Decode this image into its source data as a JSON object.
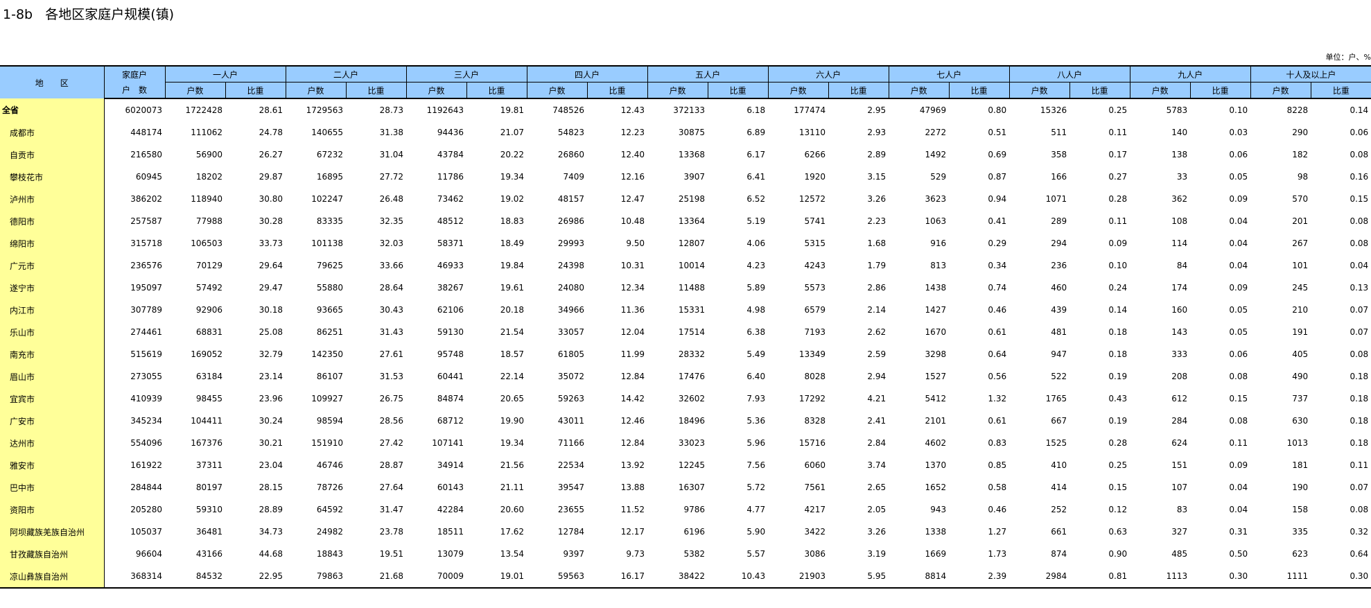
{
  "title": "1-8b   各地区家庭户规模(镇)",
  "unit": "单位：户、%",
  "header": {
    "region": "地　　区",
    "total": "家庭户",
    "total_sub": "户　数",
    "groups": [
      "一人户",
      "二人户",
      "三人户",
      "四人户",
      "五人户",
      "六人户",
      "七人户",
      "八人户",
      "九人户",
      "十人及以上户"
    ],
    "sub_count": "户数",
    "sub_ratio": "比重"
  },
  "rows": [
    {
      "region": "全省",
      "total": "6020073",
      "cells": [
        "1722428",
        "28.61",
        "1729563",
        "28.73",
        "1192643",
        "19.81",
        "748526",
        "12.43",
        "372133",
        "6.18",
        "177474",
        "2.95",
        "47969",
        "0.80",
        "15326",
        "0.25",
        "5783",
        "0.10",
        "8228",
        "0.14"
      ]
    },
    {
      "region": "成都市",
      "total": "448174",
      "cells": [
        "111062",
        "24.78",
        "140655",
        "31.38",
        "94436",
        "21.07",
        "54823",
        "12.23",
        "30875",
        "6.89",
        "13110",
        "2.93",
        "2272",
        "0.51",
        "511",
        "0.11",
        "140",
        "0.03",
        "290",
        "0.06"
      ]
    },
    {
      "region": "自贡市",
      "total": "216580",
      "cells": [
        "56900",
        "26.27",
        "67232",
        "31.04",
        "43784",
        "20.22",
        "26860",
        "12.40",
        "13368",
        "6.17",
        "6266",
        "2.89",
        "1492",
        "0.69",
        "358",
        "0.17",
        "138",
        "0.06",
        "182",
        "0.08"
      ]
    },
    {
      "region": "攀枝花市",
      "total": "60945",
      "cells": [
        "18202",
        "29.87",
        "16895",
        "27.72",
        "11786",
        "19.34",
        "7409",
        "12.16",
        "3907",
        "6.41",
        "1920",
        "3.15",
        "529",
        "0.87",
        "166",
        "0.27",
        "33",
        "0.05",
        "98",
        "0.16"
      ]
    },
    {
      "region": "泸州市",
      "total": "386202",
      "cells": [
        "118940",
        "30.80",
        "102247",
        "26.48",
        "73462",
        "19.02",
        "48157",
        "12.47",
        "25198",
        "6.52",
        "12572",
        "3.26",
        "3623",
        "0.94",
        "1071",
        "0.28",
        "362",
        "0.09",
        "570",
        "0.15"
      ]
    },
    {
      "region": "德阳市",
      "total": "257587",
      "cells": [
        "77988",
        "30.28",
        "83335",
        "32.35",
        "48512",
        "18.83",
        "26986",
        "10.48",
        "13364",
        "5.19",
        "5741",
        "2.23",
        "1063",
        "0.41",
        "289",
        "0.11",
        "108",
        "0.04",
        "201",
        "0.08"
      ]
    },
    {
      "region": "绵阳市",
      "total": "315718",
      "cells": [
        "106503",
        "33.73",
        "101138",
        "32.03",
        "58371",
        "18.49",
        "29993",
        "9.50",
        "12807",
        "4.06",
        "5315",
        "1.68",
        "916",
        "0.29",
        "294",
        "0.09",
        "114",
        "0.04",
        "267",
        "0.08"
      ]
    },
    {
      "region": "广元市",
      "total": "236576",
      "cells": [
        "70129",
        "29.64",
        "79625",
        "33.66",
        "46933",
        "19.84",
        "24398",
        "10.31",
        "10014",
        "4.23",
        "4243",
        "1.79",
        "813",
        "0.34",
        "236",
        "0.10",
        "84",
        "0.04",
        "101",
        "0.04"
      ]
    },
    {
      "region": "遂宁市",
      "total": "195097",
      "cells": [
        "57492",
        "29.47",
        "55880",
        "28.64",
        "38267",
        "19.61",
        "24080",
        "12.34",
        "11488",
        "5.89",
        "5573",
        "2.86",
        "1438",
        "0.74",
        "460",
        "0.24",
        "174",
        "0.09",
        "245",
        "0.13"
      ]
    },
    {
      "region": "内江市",
      "total": "307789",
      "cells": [
        "92906",
        "30.18",
        "93665",
        "30.43",
        "62106",
        "20.18",
        "34966",
        "11.36",
        "15331",
        "4.98",
        "6579",
        "2.14",
        "1427",
        "0.46",
        "439",
        "0.14",
        "160",
        "0.05",
        "210",
        "0.07"
      ]
    },
    {
      "region": "乐山市",
      "total": "274461",
      "cells": [
        "68831",
        "25.08",
        "86251",
        "31.43",
        "59130",
        "21.54",
        "33057",
        "12.04",
        "17514",
        "6.38",
        "7193",
        "2.62",
        "1670",
        "0.61",
        "481",
        "0.18",
        "143",
        "0.05",
        "191",
        "0.07"
      ]
    },
    {
      "region": "南充市",
      "total": "515619",
      "cells": [
        "169052",
        "32.79",
        "142350",
        "27.61",
        "95748",
        "18.57",
        "61805",
        "11.99",
        "28332",
        "5.49",
        "13349",
        "2.59",
        "3298",
        "0.64",
        "947",
        "0.18",
        "333",
        "0.06",
        "405",
        "0.08"
      ]
    },
    {
      "region": "眉山市",
      "total": "273055",
      "cells": [
        "63184",
        "23.14",
        "86107",
        "31.53",
        "60441",
        "22.14",
        "35072",
        "12.84",
        "17476",
        "6.40",
        "8028",
        "2.94",
        "1527",
        "0.56",
        "522",
        "0.19",
        "208",
        "0.08",
        "490",
        "0.18"
      ]
    },
    {
      "region": "宜宾市",
      "total": "410939",
      "cells": [
        "98455",
        "23.96",
        "109927",
        "26.75",
        "84874",
        "20.65",
        "59263",
        "14.42",
        "32602",
        "7.93",
        "17292",
        "4.21",
        "5412",
        "1.32",
        "1765",
        "0.43",
        "612",
        "0.15",
        "737",
        "0.18"
      ]
    },
    {
      "region": "广安市",
      "total": "345234",
      "cells": [
        "104411",
        "30.24",
        "98594",
        "28.56",
        "68712",
        "19.90",
        "43011",
        "12.46",
        "18496",
        "5.36",
        "8328",
        "2.41",
        "2101",
        "0.61",
        "667",
        "0.19",
        "284",
        "0.08",
        "630",
        "0.18"
      ]
    },
    {
      "region": "达州市",
      "total": "554096",
      "cells": [
        "167376",
        "30.21",
        "151910",
        "27.42",
        "107141",
        "19.34",
        "71166",
        "12.84",
        "33023",
        "5.96",
        "15716",
        "2.84",
        "4602",
        "0.83",
        "1525",
        "0.28",
        "624",
        "0.11",
        "1013",
        "0.18"
      ]
    },
    {
      "region": "雅安市",
      "total": "161922",
      "cells": [
        "37311",
        "23.04",
        "46746",
        "28.87",
        "34914",
        "21.56",
        "22534",
        "13.92",
        "12245",
        "7.56",
        "6060",
        "3.74",
        "1370",
        "0.85",
        "410",
        "0.25",
        "151",
        "0.09",
        "181",
        "0.11"
      ]
    },
    {
      "region": "巴中市",
      "total": "284844",
      "cells": [
        "80197",
        "28.15",
        "78726",
        "27.64",
        "60143",
        "21.11",
        "39547",
        "13.88",
        "16307",
        "5.72",
        "7561",
        "2.65",
        "1652",
        "0.58",
        "414",
        "0.15",
        "107",
        "0.04",
        "190",
        "0.07"
      ]
    },
    {
      "region": "资阳市",
      "total": "205280",
      "cells": [
        "59310",
        "28.89",
        "64592",
        "31.47",
        "42284",
        "20.60",
        "23655",
        "11.52",
        "9786",
        "4.77",
        "4217",
        "2.05",
        "943",
        "0.46",
        "252",
        "0.12",
        "83",
        "0.04",
        "158",
        "0.08"
      ]
    },
    {
      "region": "阿坝藏族羌族自治州",
      "total": "105037",
      "cells": [
        "36481",
        "34.73",
        "24982",
        "23.78",
        "18511",
        "17.62",
        "12784",
        "12.17",
        "6196",
        "5.90",
        "3422",
        "3.26",
        "1338",
        "1.27",
        "661",
        "0.63",
        "327",
        "0.31",
        "335",
        "0.32"
      ]
    },
    {
      "region": "甘孜藏族自治州",
      "total": "96604",
      "cells": [
        "43166",
        "44.68",
        "18843",
        "19.51",
        "13079",
        "13.54",
        "9397",
        "9.73",
        "5382",
        "5.57",
        "3086",
        "3.19",
        "1669",
        "1.73",
        "874",
        "0.90",
        "485",
        "0.50",
        "623",
        "0.64"
      ]
    },
    {
      "region": "凉山彝族自治州",
      "total": "368314",
      "cells": [
        "84532",
        "22.95",
        "79863",
        "21.68",
        "70009",
        "19.01",
        "59563",
        "16.17",
        "38422",
        "10.43",
        "21903",
        "5.95",
        "8814",
        "2.39",
        "2984",
        "0.81",
        "1113",
        "0.30",
        "1111",
        "0.30"
      ]
    }
  ]
}
